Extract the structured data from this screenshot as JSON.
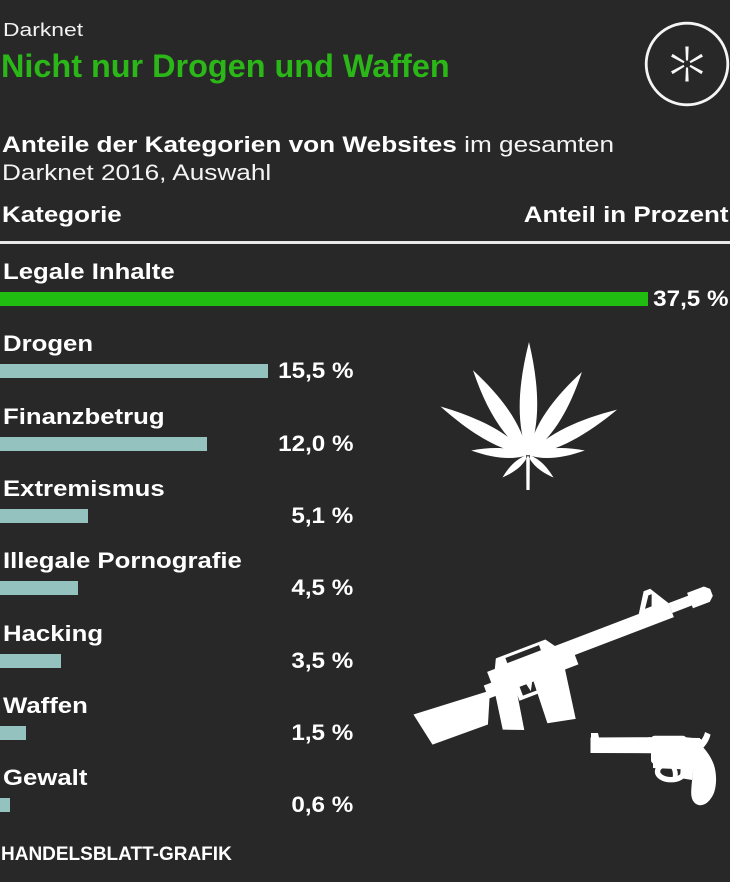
{
  "header": {
    "kicker": "Darknet",
    "title": "Nicht nur Drogen und Waffen",
    "logo_icon": "asterisk-circle-icon"
  },
  "subtitle": {
    "bold": "Anteile der Kategorien von Websites",
    "regular": " im gesamten",
    "line2": "Darknet 2016, Auswahl"
  },
  "table_header": {
    "category": "Kategorie",
    "value": "Anteil in Prozent"
  },
  "chart_data": {
    "type": "bar",
    "orientation": "horizontal",
    "title": "Nicht nur Drogen und Waffen",
    "subtitle": "Anteile der Kategorien von Websites im gesamten Darknet 2016, Auswahl",
    "categories": [
      "Legale Inhalte",
      "Drogen",
      "Finanzbetrug",
      "Extremismus",
      "Illegale Pornografie",
      "Hacking",
      "Waffen",
      "Gewalt"
    ],
    "values": [
      37.5,
      15.5,
      12.0,
      5.1,
      4.5,
      3.5,
      1.5,
      0.6
    ],
    "value_labels": [
      "37,5 %",
      "15,5 %",
      "12,0 %",
      "5,1 %",
      "4,5 %",
      "3,5 %",
      "1,5 %",
      "0,6 %"
    ],
    "unit": "percent",
    "xlim": [
      0,
      37.5
    ],
    "highlight_index": 0,
    "legend": false,
    "grid": false
  },
  "icons": {
    "logo": "asterisk-circle-icon",
    "drugs": "cannabis-leaf-icon",
    "rifle": "assault-rifle-icon",
    "pistol": "revolver-icon"
  },
  "colors": {
    "background": "#282828",
    "accent_green": "#21bc11",
    "bar_teal": "#94c3bf",
    "text_white": "#ffffff",
    "rule": "#e8e8e8"
  },
  "footer": {
    "credit": "HANDELSBLATT-GRAFIK"
  }
}
